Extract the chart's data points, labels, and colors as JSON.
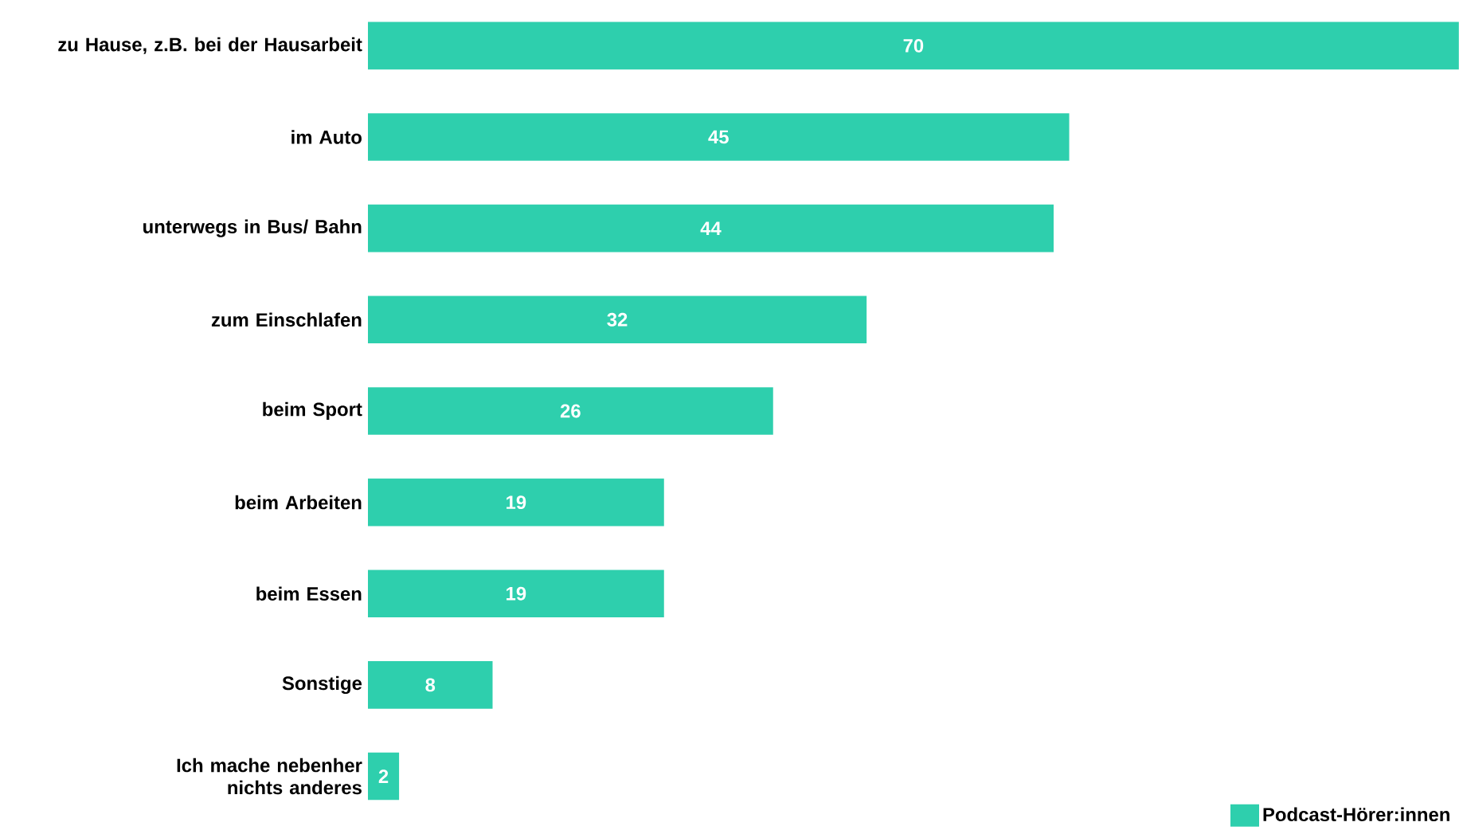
{
  "chart_data": {
    "type": "bar",
    "orientation": "horizontal",
    "categories": [
      "zu Hause, z.B. bei der Hausarbeit",
      "im Auto",
      "unterwegs in Bus/ Bahn",
      "zum Einschlafen",
      "beim Sport",
      "beim Arbeiten",
      "beim Essen",
      "Sonstige",
      "Ich mache nebenher nichts anderes"
    ],
    "series": [
      {
        "name": "Podcast-Hörer:innen",
        "color": "#2ecfad",
        "values": [
          70,
          45,
          44,
          32,
          26,
          19,
          19,
          8,
          2
        ]
      }
    ],
    "xlim": [
      0,
      70
    ],
    "data_labels": true,
    "legend": "bottom right",
    "tick_labels": "y"
  }
}
